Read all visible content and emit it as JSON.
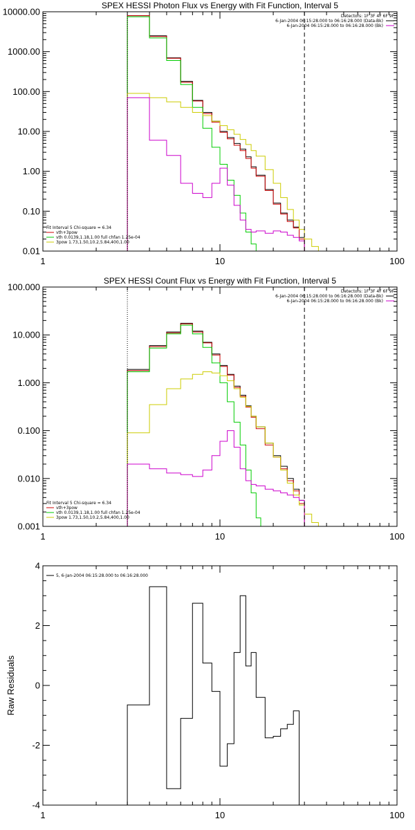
{
  "chart_data": [
    {
      "type": "line",
      "title": "SPEX HESSI Photon Flux vs Energy with Fit Function, Interval 5",
      "xscale": "log",
      "yscale": "log",
      "xlim": [
        1,
        100
      ],
      "ylim": [
        0.01,
        10000
      ],
      "xticks": [
        "1",
        "10",
        "100"
      ],
      "yticks": [
        {
          "v": 0.01,
          "label": "0.01"
        },
        {
          "v": 0.1,
          "label": "0.10"
        },
        {
          "v": 1,
          "label": "1.00"
        },
        {
          "v": 10,
          "label": "10.00"
        },
        {
          "v": 100,
          "label": "100.00"
        },
        {
          "v": 1000,
          "label": "1000.00"
        },
        {
          "v": 10000,
          "label": "10000.00"
        }
      ],
      "vlines": [
        {
          "x": 3,
          "style": "dotted",
          "color": "#000000"
        },
        {
          "x": 30,
          "style": "dashed",
          "color": "#000000"
        }
      ],
      "legend_right": [
        {
          "text": "Detectors: 1F 3F 4F 6F 9F",
          "color": ""
        },
        {
          "text": "6-Jan-2004 06:15:28.000 to 06:16:28.000 (Data-Bk)",
          "color": "#000000"
        },
        {
          "text": "6-Jan-2004 06:15:28.000 to 06:16:28.000 (Bk)",
          "color": "#cc00cc"
        }
      ],
      "legend_left": [
        {
          "text": "Fit Interval 5   Chi-square = 6.34",
          "color": ""
        },
        {
          "text": "vth+3pow",
          "color": "#cc0000"
        },
        {
          "text": "vth 0.0139,1.18,1.00  full chfan 1.25e-04",
          "color": "#00cc00"
        },
        {
          "text": "3pow 1.73,1.50,10.2,5.84,400,1.00",
          "color": "#cccc00"
        }
      ],
      "series": [
        {
          "color": "#000000",
          "edges": [
            3,
            4,
            5,
            6,
            7,
            8,
            9,
            10,
            11,
            12,
            13,
            14,
            15,
            16,
            18,
            20,
            22,
            24,
            26,
            28,
            30
          ],
          "values": [
            8000,
            2500,
            700,
            180,
            60,
            30,
            18,
            10,
            7,
            5,
            3.6,
            2.3,
            1.3,
            0.8,
            0.35,
            0.16,
            0.09,
            0.06,
            0.04,
            0.022
          ],
          "floor": 0.01
        },
        {
          "color": "#cc0000",
          "edges": [
            3,
            4,
            5,
            6,
            7,
            8,
            9,
            10,
            11,
            12,
            13,
            14,
            15,
            16,
            18,
            20,
            22,
            24,
            26,
            28,
            30
          ],
          "values": [
            8000,
            2400,
            680,
            170,
            58,
            28,
            17,
            9.5,
            6.5,
            4.5,
            3.3,
            2.1,
            1.2,
            0.75,
            0.33,
            0.15,
            0.085,
            0.055,
            0.038,
            0.02
          ],
          "floor": 0.01
        },
        {
          "color": "#00cc00",
          "edges": [
            3,
            4,
            5,
            6,
            7,
            8,
            9,
            10,
            11,
            12,
            13,
            14,
            15,
            16,
            17
          ],
          "values": [
            7500,
            2200,
            600,
            150,
            40,
            12,
            4,
            1.5,
            0.6,
            0.25,
            0.09,
            0.03,
            0.015,
            0.008
          ],
          "floor": 0.01
        },
        {
          "color": "#cccc00",
          "edges": [
            3,
            4,
            5,
            6,
            7,
            8,
            9,
            10,
            11,
            12,
            13,
            14,
            15,
            16,
            18,
            20,
            22,
            24,
            26,
            28,
            30,
            33,
            36
          ],
          "values": [
            90,
            70,
            55,
            40,
            30,
            25,
            18,
            14,
            11,
            8.5,
            6.3,
            4.7,
            3.3,
            2.4,
            1.1,
            0.5,
            0.22,
            0.11,
            0.06,
            0.035,
            0.02,
            0.013
          ],
          "floor": 0.01
        },
        {
          "color": "#cc00cc",
          "edges": [
            3,
            4,
            5,
            6,
            7,
            8,
            9,
            10,
            11,
            12,
            13,
            14,
            15,
            16,
            18,
            20,
            22,
            24,
            26,
            28,
            30
          ],
          "values": [
            70,
            6,
            2.5,
            0.5,
            0.28,
            0.22,
            0.5,
            1.2,
            0.45,
            0.14,
            0.06,
            0.035,
            0.03,
            0.032,
            0.028,
            0.032,
            0.03,
            0.025,
            0.022,
            0.018
          ],
          "floor": 0.01
        }
      ]
    },
    {
      "type": "line",
      "title": "SPEX HESSI Count Flux vs Energy with Fit Function, Interval 5",
      "xscale": "log",
      "yscale": "log",
      "xlim": [
        1,
        100
      ],
      "ylim": [
        0.001,
        100
      ],
      "xticks": [
        "1",
        "10",
        "100"
      ],
      "yticks": [
        {
          "v": 0.001,
          "label": "0.001"
        },
        {
          "v": 0.01,
          "label": "0.010"
        },
        {
          "v": 0.1,
          "label": "0.100"
        },
        {
          "v": 1,
          "label": "1.000"
        },
        {
          "v": 10,
          "label": "10.000"
        },
        {
          "v": 100,
          "label": "100.000"
        }
      ],
      "vlines": [
        {
          "x": 3,
          "style": "dotted",
          "color": "#000000"
        },
        {
          "x": 30,
          "style": "dashed",
          "color": "#000000"
        }
      ],
      "legend_right": [
        {
          "text": "Detectors: 1F 3F 4F 6F 9F",
          "color": ""
        },
        {
          "text": "6-Jan-2004 06:15:28.000 to 06:16:28.000 (Data-Bk)",
          "color": "#000000"
        },
        {
          "text": "6-Jan-2004 06:15:28.000 to 06:16:28.000 (Bk)",
          "color": "#cc00cc"
        }
      ],
      "legend_left": [
        {
          "text": "Fit Interval 5   Chi-square = 6.34",
          "color": ""
        },
        {
          "text": "vth+3pow",
          "color": "#cc0000"
        },
        {
          "text": "vth 0.0139,1.18,1.00  full chfan 1.25e-04",
          "color": "#00cc00"
        },
        {
          "text": "3pow 1.73,1.50,10.2,5.84,400,1.00",
          "color": "#cccc00"
        }
      ],
      "series": [
        {
          "color": "#000000",
          "edges": [
            3,
            4,
            5,
            6,
            7,
            8,
            9,
            10,
            11,
            12,
            13,
            14,
            15,
            16,
            18,
            20,
            22,
            24,
            26,
            28,
            30
          ],
          "values": [
            1.9,
            6.0,
            11.5,
            17.5,
            12,
            7,
            4,
            2.3,
            1.5,
            0.85,
            0.55,
            0.33,
            0.2,
            0.12,
            0.055,
            0.03,
            0.018,
            0.01,
            0.006,
            0.0035
          ],
          "floor": 0.001
        },
        {
          "color": "#cc0000",
          "edges": [
            3,
            4,
            5,
            6,
            7,
            8,
            9,
            10,
            11,
            12,
            13,
            14,
            15,
            16,
            18,
            20,
            22,
            24,
            26,
            28,
            30
          ],
          "values": [
            1.8,
            5.7,
            11,
            17,
            11.5,
            6.8,
            3.8,
            2.2,
            1.45,
            0.8,
            0.52,
            0.31,
            0.19,
            0.11,
            0.05,
            0.028,
            0.016,
            0.009,
            0.0055,
            0.003
          ],
          "floor": 0.001
        },
        {
          "color": "#00cc00",
          "edges": [
            3,
            4,
            5,
            6,
            7,
            8,
            9,
            10,
            11,
            12,
            13,
            14,
            15,
            16,
            17
          ],
          "values": [
            1.7,
            5.3,
            10.5,
            16,
            10.5,
            5.5,
            2.6,
            1.0,
            0.4,
            0.15,
            0.05,
            0.015,
            0.005,
            0.0015
          ],
          "floor": 0.001
        },
        {
          "color": "#cccc00",
          "edges": [
            3,
            4,
            5,
            6,
            7,
            8,
            9,
            10,
            11,
            12,
            13,
            14,
            15,
            16,
            18,
            20,
            22,
            24,
            26,
            28,
            30,
            33,
            36,
            40
          ],
          "values": [
            0.09,
            0.35,
            0.75,
            1.2,
            1.5,
            1.7,
            1.6,
            1.4,
            1.1,
            0.75,
            0.5,
            0.32,
            0.2,
            0.12,
            0.055,
            0.028,
            0.015,
            0.008,
            0.0045,
            0.0028,
            0.0018,
            0.0012,
            0.001
          ],
          "floor": 0.001
        },
        {
          "color": "#cc00cc",
          "edges": [
            3,
            4,
            5,
            6,
            7,
            8,
            9,
            10,
            11,
            12,
            13,
            14,
            15,
            16,
            18,
            20,
            22,
            24,
            26,
            28,
            30
          ],
          "values": [
            0.02,
            0.016,
            0.013,
            0.012,
            0.011,
            0.015,
            0.03,
            0.06,
            0.1,
            0.045,
            0.016,
            0.009,
            0.0075,
            0.007,
            0.006,
            0.0055,
            0.005,
            0.0045,
            0.004,
            0.0035
          ],
          "floor": 0.001
        }
      ]
    },
    {
      "type": "line",
      "title": "",
      "xscale": "log",
      "yscale": "linear",
      "xlim": [
        1,
        100
      ],
      "ylim": [
        -4,
        4
      ],
      "ylabel": "Raw Residuals",
      "xticks": [
        "1",
        "10",
        "100"
      ],
      "yticks": [
        {
          "v": -4,
          "label": "-4"
        },
        {
          "v": -2,
          "label": "-2"
        },
        {
          "v": 0,
          "label": "0"
        },
        {
          "v": 2,
          "label": "2"
        },
        {
          "v": 4,
          "label": "4"
        }
      ],
      "legend_left": [
        {
          "text": "5,  6-Jan-2004 06:15:28.000 to 06:16:28.000",
          "color": "#000000"
        }
      ],
      "series": [
        {
          "color": "#000000",
          "edges": [
            3,
            4,
            5,
            6,
            7,
            8,
            9,
            10,
            11,
            12,
            13,
            14,
            15,
            16,
            18,
            20,
            22,
            24,
            26,
            28,
            30
          ],
          "values": [
            -0.65,
            3.3,
            -3.45,
            -1.1,
            2.75,
            0.75,
            -0.2,
            -2.7,
            -1.95,
            1.1,
            3.0,
            0.65,
            1.1,
            -0.4,
            -1.75,
            -1.7,
            -1.45,
            -1.3,
            -0.85,
            -4.0
          ],
          "floor": -4
        }
      ]
    }
  ]
}
